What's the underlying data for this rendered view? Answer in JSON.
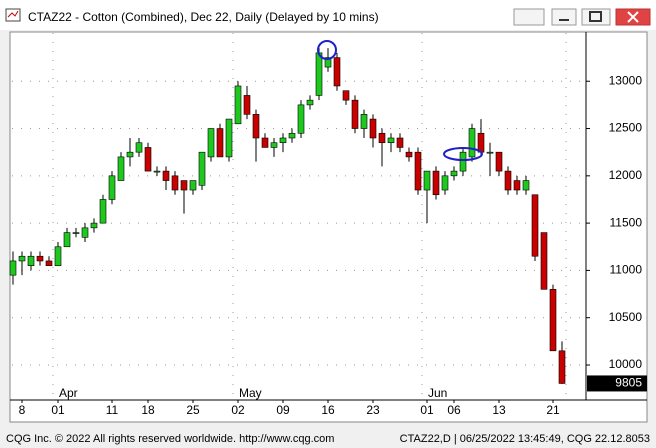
{
  "chart_data": {
    "type": "candlestick",
    "title": "CTAZ22 - Cotton (Combined), Dec 22, Daily (Delayed by 10 mins)",
    "footer_left": "CQG Inc. © 2022 All rights reserved worldwide. http://www.cqg.com",
    "footer_right": "CTAZ22,D | 06/25/2022 13:45:49, CQG 22.12.8053",
    "categories": [
      null,
      "8",
      null,
      null,
      null,
      "01",
      null,
      null,
      null,
      null,
      null,
      "11",
      null,
      null,
      null,
      "18",
      null,
      null,
      null,
      null,
      "25",
      null,
      null,
      null,
      null,
      "02",
      null,
      null,
      null,
      null,
      "09",
      null,
      null,
      null,
      null,
      "16",
      null,
      null,
      null,
      null,
      "23",
      null,
      null,
      null,
      null,
      null,
      "01",
      null,
      null,
      "06",
      null,
      null,
      null,
      null,
      "13",
      null,
      null,
      null,
      null,
      null,
      "21",
      null,
      null
    ],
    "months": [
      null,
      null,
      null,
      null,
      null,
      "Apr",
      null,
      null,
      null,
      null,
      null,
      null,
      null,
      null,
      null,
      null,
      null,
      null,
      null,
      null,
      null,
      null,
      null,
      null,
      null,
      "May",
      null,
      null,
      null,
      null,
      null,
      null,
      null,
      null,
      null,
      null,
      null,
      null,
      null,
      null,
      null,
      null,
      null,
      null,
      null,
      null,
      "Jun",
      null,
      null,
      null,
      null,
      null,
      null,
      null,
      null,
      null,
      null,
      null,
      null,
      null,
      null,
      null
    ],
    "open": [
      10950,
      11100,
      11050,
      11150,
      11100,
      11050,
      11250,
      11400,
      11350,
      11450,
      11500,
      11750,
      11950,
      12200,
      12250,
      12300,
      12050,
      12050,
      12000,
      11950,
      11850,
      11900,
      12200,
      12500,
      12200,
      12550,
      12850,
      12650,
      12400,
      12300,
      12350,
      12400,
      12450,
      12750,
      12850,
      13150,
      13250,
      12900,
      12800,
      12500,
      12600,
      12450,
      12350,
      12400,
      12250,
      12250,
      11850,
      12050,
      11850,
      12000,
      12050,
      12200,
      12450,
      12250,
      12250,
      12050,
      11950,
      11850,
      11800,
      11400,
      10800,
      10150
    ],
    "high": [
      11200,
      11200,
      11200,
      11200,
      11150,
      11300,
      11450,
      11450,
      11500,
      11550,
      11800,
      12050,
      12250,
      12400,
      12400,
      12350,
      12100,
      12100,
      12050,
      11950,
      11950,
      12250,
      12500,
      12550,
      12600,
      13000,
      12950,
      12700,
      12450,
      12400,
      12450,
      12500,
      12800,
      12850,
      13350,
      13350,
      13300,
      12900,
      12850,
      12700,
      12650,
      12500,
      12450,
      12450,
      12300,
      12300,
      12050,
      12100,
      12050,
      12100,
      12300,
      12550,
      12600,
      12350,
      12250,
      12100,
      12000,
      12000,
      11800,
      11400,
      10850,
      10250
    ],
    "low": [
      10850,
      10950,
      11000,
      11050,
      11050,
      11050,
      11250,
      11350,
      11300,
      11400,
      11500,
      11700,
      11950,
      12100,
      12200,
      12050,
      12000,
      11850,
      11800,
      11600,
      11800,
      11850,
      12150,
      12200,
      12150,
      12550,
      12600,
      12150,
      12300,
      12200,
      12250,
      12350,
      12400,
      12700,
      12800,
      13100,
      12900,
      12750,
      12450,
      12400,
      12300,
      12100,
      12250,
      12250,
      12150,
      11800,
      11500,
      11750,
      11800,
      11950,
      12000,
      12150,
      12200,
      12000,
      12000,
      11800,
      11800,
      11800,
      11100,
      10800,
      10150,
      9800
    ],
    "close": [
      11100,
      11150,
      11150,
      11100,
      11050,
      11250,
      11400,
      11400,
      11450,
      11500,
      11750,
      12000,
      12200,
      12250,
      12350,
      12050,
      12050,
      11950,
      11850,
      11850,
      11950,
      12250,
      12500,
      12200,
      12600,
      12950,
      12650,
      12400,
      12300,
      12350,
      12400,
      12450,
      12750,
      12800,
      13300,
      13250,
      12950,
      12800,
      12500,
      12650,
      12400,
      12350,
      12400,
      12300,
      12200,
      11850,
      12050,
      11800,
      12000,
      12050,
      12250,
      12500,
      12250,
      12250,
      12050,
      11850,
      11850,
      11950,
      11150,
      10800,
      10150,
      9805
    ],
    "up_color": "#1ec81e",
    "down_color": "#c80000",
    "ylim": [
      9630,
      13510
    ],
    "yticks": [
      10000,
      10500,
      11000,
      11500,
      12000,
      12500,
      13000
    ],
    "grid": true,
    "last_price": 9805
  }
}
